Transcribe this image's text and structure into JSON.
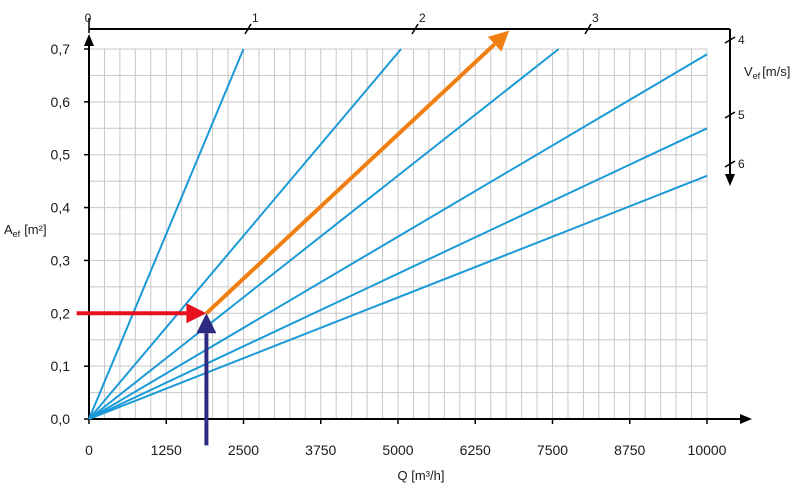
{
  "chart_data": {
    "type": "line",
    "xlabel": "Q [m³/h]",
    "ylabel_main": "A",
    "ylabel_sub": "ef",
    "ylabel_unit": "[m²]",
    "right_label_main": "V",
    "right_label_sub": "ef",
    "right_label_unit": "[m/s]",
    "xlim": [
      0,
      10000
    ],
    "ylim": [
      0,
      0.7
    ],
    "x_ticks": [
      0,
      1250,
      2500,
      3750,
      5000,
      6250,
      7500,
      8750,
      10000
    ],
    "x_tick_labels": [
      "0",
      "1250",
      "2500",
      "3750",
      "5000",
      "6250",
      "7500",
      "8750",
      "10000"
    ],
    "y_ticks": [
      0,
      0.1,
      0.2,
      0.3,
      0.4,
      0.5,
      0.6,
      0.7
    ],
    "y_tick_labels": [
      "0,0",
      "0,1",
      "0,2",
      "0,3",
      "0,4",
      "0,5",
      "0,6",
      "0,7"
    ],
    "x_minor_step": 250,
    "y_minor_step": 0.05,
    "grid": true,
    "top_scale_labels": [
      {
        "value": 0,
        "label": "0"
      },
      {
        "value": 1,
        "label": "1"
      },
      {
        "value": 2,
        "label": "2"
      },
      {
        "value": 3,
        "label": "3"
      }
    ],
    "right_scale_labels": [
      {
        "value": 4,
        "label": "4"
      },
      {
        "value": 5,
        "label": "5"
      },
      {
        "value": 6,
        "label": "6"
      }
    ],
    "series": [
      {
        "values": [
          [
            0,
            0
          ],
          [
            2500,
            0.7
          ]
        ]
      },
      {
        "values": [
          [
            0,
            0
          ],
          [
            5050,
            0.7
          ]
        ]
      },
      {
        "values": [
          [
            0,
            0
          ],
          [
            7600,
            0.7
          ]
        ]
      },
      {
        "values": [
          [
            0,
            0
          ],
          [
            10000,
            0.69
          ]
        ]
      },
      {
        "values": [
          [
            0,
            0
          ],
          [
            10000,
            0.55
          ]
        ]
      },
      {
        "values": [
          [
            0,
            0
          ],
          [
            10000,
            0.46
          ]
        ]
      }
    ],
    "annotations": [
      {
        "kind": "arrow",
        "color": "#e8101e",
        "from": [
          -200,
          0.2
        ],
        "to": [
          1900,
          0.2
        ]
      },
      {
        "kind": "arrow",
        "color": "#2d2a82",
        "from": [
          1900,
          -0.05
        ],
        "to": [
          1900,
          0.2
        ]
      },
      {
        "kind": "arrow",
        "color": "#f07f12",
        "from": [
          1900,
          0.2
        ],
        "to": [
          6800,
          0.735
        ]
      }
    ],
    "series_color": "#1a9ad6"
  }
}
